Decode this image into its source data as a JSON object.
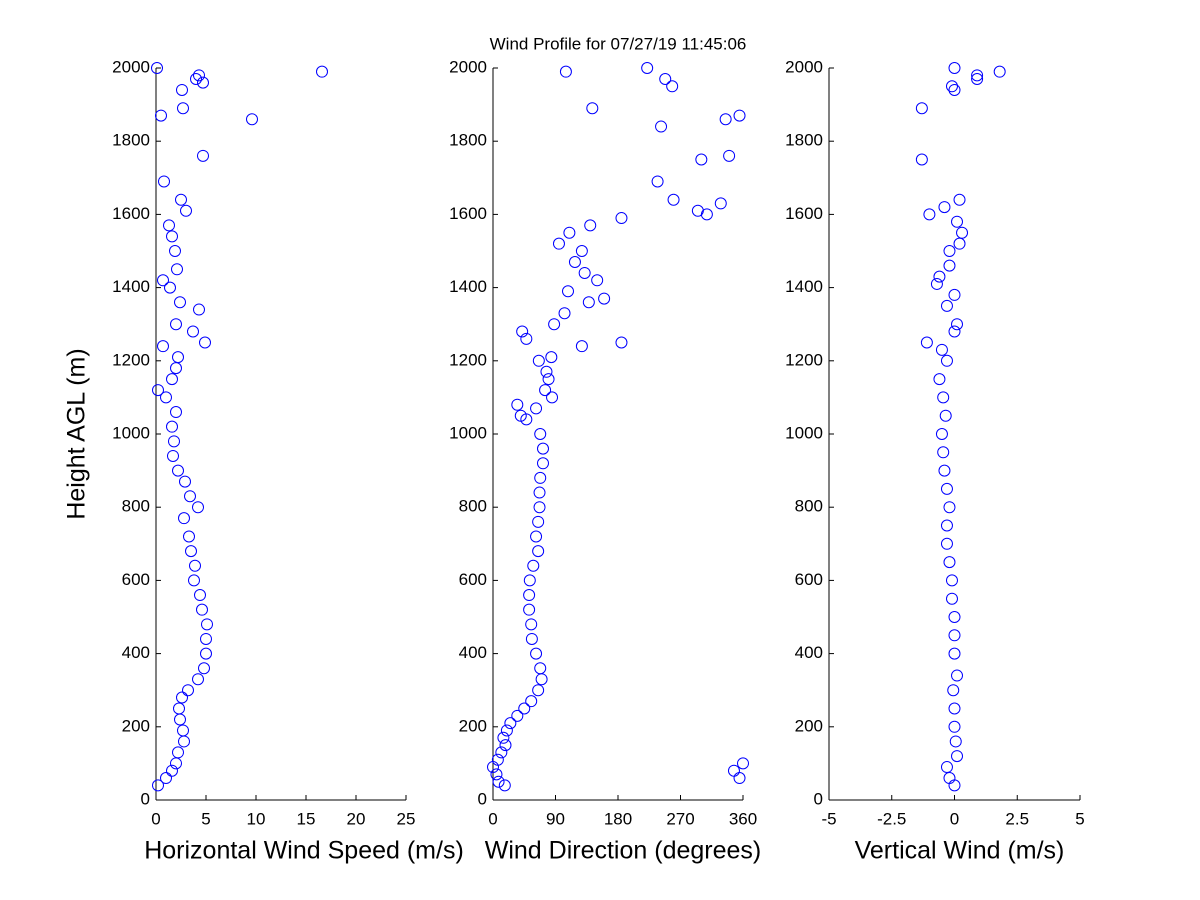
{
  "chart_data": [
    {
      "type": "scatter",
      "title": "Wind Profile for  07/27/19 11:45:06",
      "y_label": "Height AGL (m)",
      "x_label": "Horizontal Wind Speed (m/s)",
      "color": "#0000ff",
      "x": [
        0.2,
        1.0,
        1.6,
        2.0,
        2.2,
        2.8,
        2.7,
        2.4,
        2.3,
        2.6,
        3.2,
        4.2,
        4.8,
        5.0,
        5.0,
        5.1,
        4.6,
        4.4,
        3.8,
        3.9,
        3.5,
        3.3,
        2.8,
        4.2,
        3.4,
        2.9,
        2.2,
        1.7,
        1.8,
        1.6,
        2.0,
        1.0,
        0.2,
        1.6,
        2.0,
        2.2,
        0.7,
        4.9,
        3.7,
        2.0,
        4.3,
        2.4,
        1.4,
        0.7,
        2.1,
        1.9,
        1.6,
        1.3,
        3.0,
        2.5,
        0.8,
        4.7,
        9.6,
        0.5,
        2.7,
        2.6,
        4.7,
        4.0,
        4.3,
        16.6,
        0.1
      ],
      "y": [
        40,
        60,
        80,
        100,
        130,
        160,
        190,
        220,
        250,
        280,
        300,
        330,
        360,
        400,
        440,
        480,
        520,
        560,
        600,
        640,
        680,
        720,
        770,
        800,
        830,
        870,
        900,
        940,
        980,
        1020,
        1060,
        1100,
        1120,
        1150,
        1180,
        1210,
        1240,
        1250,
        1280,
        1300,
        1340,
        1360,
        1400,
        1420,
        1450,
        1500,
        1540,
        1570,
        1610,
        1640,
        1690,
        1760,
        1860,
        1870,
        1890,
        1940,
        1960,
        1970,
        1980,
        1990,
        2000
      ],
      "xlim": [
        0,
        25
      ],
      "xticks": [
        0,
        5,
        10,
        15,
        20,
        25
      ],
      "ylim": [
        0,
        2000
      ],
      "yticks": [
        0,
        200,
        400,
        600,
        800,
        1000,
        1200,
        1400,
        1600,
        1800,
        2000
      ]
    },
    {
      "type": "scatter",
      "x_label": "Wind Direction (degrees)",
      "color": "#0000ff",
      "x": [
        17,
        8,
        5,
        0,
        7,
        12,
        18,
        15,
        20,
        25,
        35,
        45,
        55,
        65,
        70,
        68,
        62,
        56,
        55,
        52,
        52,
        53,
        58,
        65,
        62,
        65,
        67,
        67,
        68,
        72,
        72,
        68,
        48,
        40,
        62,
        35,
        85,
        75,
        80,
        77,
        66,
        84,
        128,
        185,
        48,
        42,
        88,
        103,
        138,
        160,
        108,
        150,
        132,
        118,
        128,
        95,
        110,
        140,
        185,
        308,
        295,
        328,
        260,
        237,
        300,
        340,
        242,
        335,
        355,
        143,
        258,
        248,
        105,
        222,
        355,
        347,
        360
      ],
      "y": [
        40,
        50,
        70,
        90,
        110,
        130,
        150,
        170,
        190,
        210,
        230,
        250,
        270,
        300,
        330,
        360,
        400,
        440,
        480,
        520,
        560,
        600,
        640,
        680,
        720,
        760,
        800,
        840,
        880,
        920,
        960,
        1000,
        1040,
        1050,
        1070,
        1080,
        1100,
        1120,
        1150,
        1170,
        1200,
        1210,
        1240,
        1250,
        1260,
        1280,
        1300,
        1330,
        1360,
        1370,
        1390,
        1420,
        1440,
        1470,
        1500,
        1520,
        1550,
        1570,
        1590,
        1600,
        1610,
        1630,
        1640,
        1690,
        1750,
        1760,
        1840,
        1860,
        1870,
        1890,
        1950,
        1970,
        1990,
        2000,
        60,
        80,
        100
      ],
      "xlim": [
        0,
        360
      ],
      "xticks": [
        0,
        90,
        180,
        270,
        360
      ],
      "ylim": [
        0,
        2000
      ],
      "yticks": [
        0,
        200,
        400,
        600,
        800,
        1000,
        1200,
        1400,
        1600,
        1800,
        2000
      ]
    },
    {
      "type": "scatter",
      "x_label": "Vertical Wind (m/s)",
      "color": "#0000ff",
      "x": [
        0,
        -0.2,
        -0.3,
        0.1,
        0.05,
        0,
        0,
        -0.05,
        0.1,
        0,
        0,
        0,
        -0.1,
        -0.1,
        -0.2,
        -0.3,
        -0.3,
        -0.2,
        -0.3,
        -0.4,
        -0.45,
        -0.5,
        -0.35,
        -0.45,
        -0.6,
        -0.3,
        -0.5,
        -1.1,
        0.0,
        0.1,
        -0.3,
        0,
        -0.7,
        -0.6,
        -0.2,
        -0.2,
        0.2,
        0.3,
        0.1,
        -1.0,
        -0.4,
        0.2,
        -1.3,
        -1.3,
        0,
        -0.1,
        0.9,
        0.9,
        1.8,
        0
      ],
      "y": [
        40,
        60,
        90,
        120,
        160,
        200,
        250,
        300,
        340,
        400,
        450,
        500,
        550,
        600,
        650,
        700,
        750,
        800,
        850,
        900,
        950,
        1000,
        1050,
        1100,
        1150,
        1200,
        1230,
        1250,
        1280,
        1300,
        1350,
        1380,
        1410,
        1430,
        1460,
        1500,
        1520,
        1550,
        1580,
        1600,
        1620,
        1640,
        1750,
        1890,
        1940,
        1950,
        1970,
        1980,
        1990,
        2000
      ],
      "xlim": [
        -5,
        5
      ],
      "xticks": [
        -5,
        -2.5,
        0,
        2.5,
        5
      ],
      "ylim": [
        0,
        2000
      ],
      "yticks": [
        0,
        200,
        400,
        600,
        800,
        1000,
        1200,
        1400,
        1600,
        1800,
        2000
      ]
    }
  ]
}
